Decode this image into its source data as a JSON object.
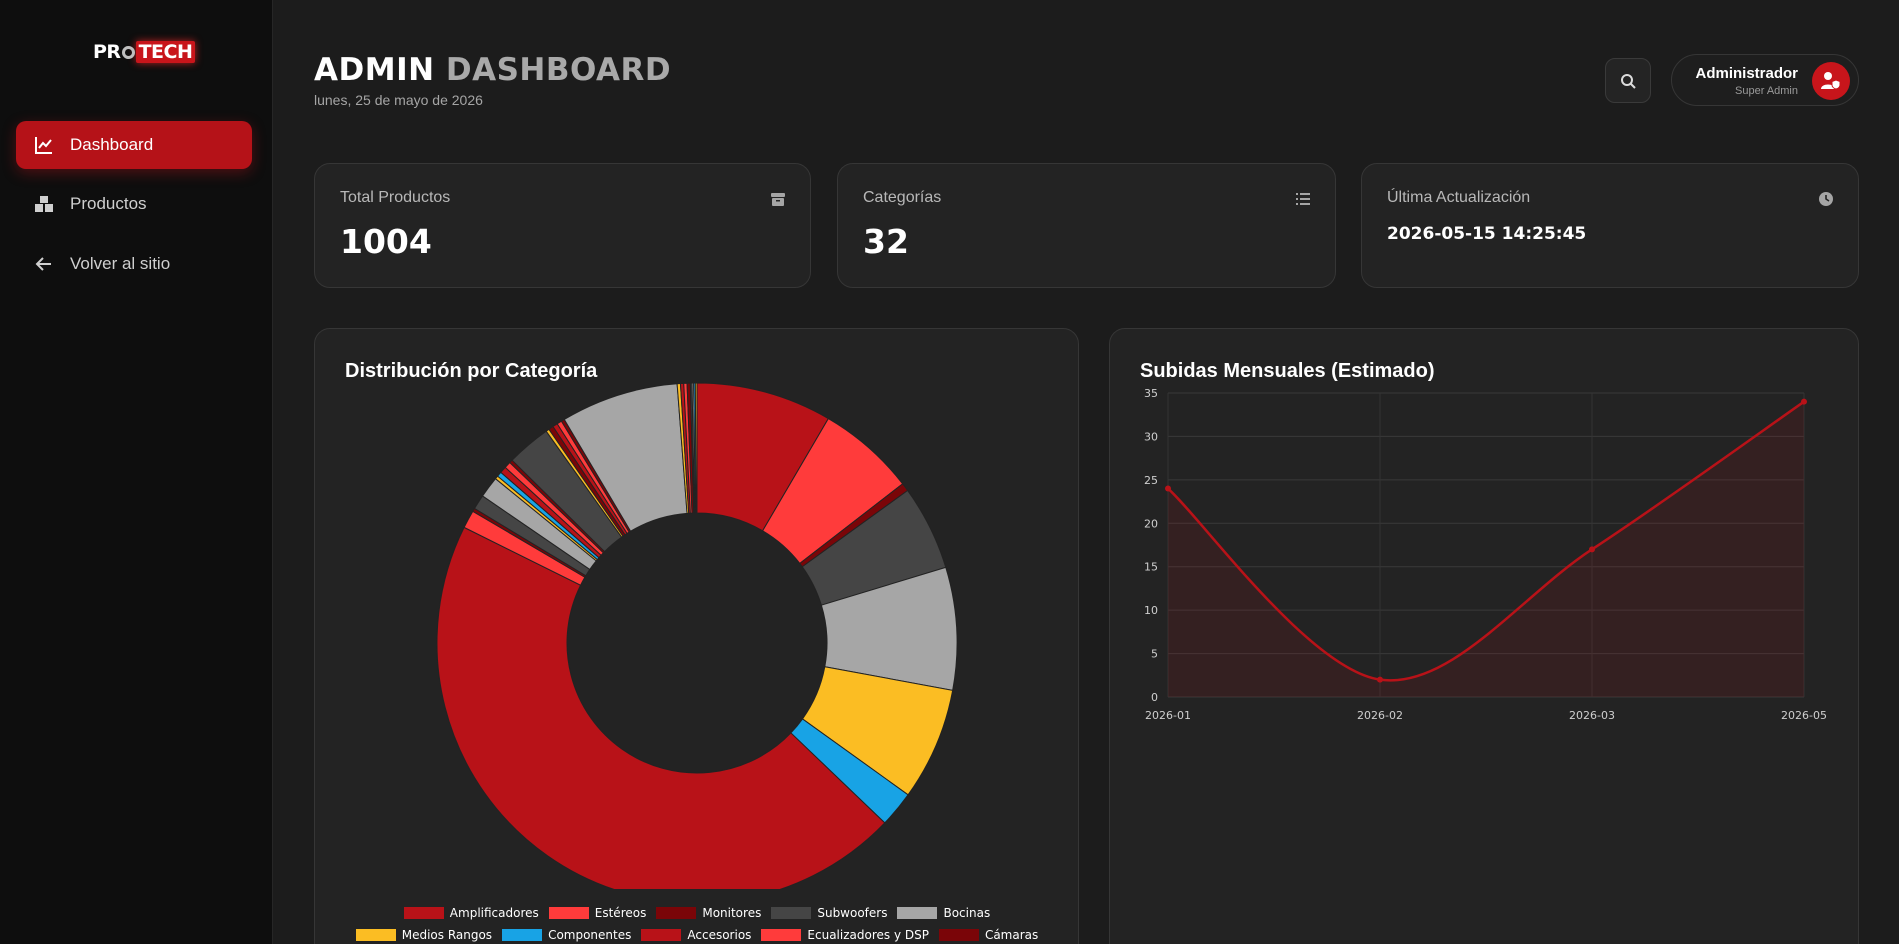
{
  "sidebar": {
    "logo": {
      "part1": "PR",
      "part2": "TECH"
    },
    "items": [
      {
        "label": "Dashboard",
        "icon": "chart-line-icon",
        "active": true
      },
      {
        "label": "Productos",
        "icon": "boxes-icon",
        "active": false
      },
      {
        "label": "Volver al sitio",
        "icon": "arrow-left-icon",
        "active": false
      }
    ]
  },
  "header": {
    "title_part1": "ADMIN",
    "title_part2": "DASHBOARD",
    "date": "lunes, 25 de mayo de 2026",
    "search_icon": "search-icon",
    "user": {
      "name": "Administrador",
      "role": "Super Admin",
      "icon": "user-shield-icon"
    }
  },
  "stats": [
    {
      "label": "Total Productos",
      "value": "1004",
      "icon": "box-icon"
    },
    {
      "label": "Categorías",
      "value": "32",
      "icon": "list-icon"
    },
    {
      "label": "Última Actualización",
      "value": "2026-05-15 14:25:45",
      "icon": "clock-icon"
    }
  ],
  "colors": {
    "accent": "#b51218",
    "red": "#b81218",
    "light_red": "#ff3b3b",
    "dark_red": "#7a0508",
    "dark_gray": "#454545",
    "light_gray": "#a6a6a6",
    "yellow": "#fbbd23",
    "blue": "#18a3e5"
  },
  "chart_data": [
    {
      "type": "pie",
      "title": "Distribución por Categoría",
      "legend_position": "bottom",
      "legend": [
        {
          "label": "Amplificadores",
          "color": "#b81218"
        },
        {
          "label": "Estéreos",
          "color": "#ff3b3b"
        },
        {
          "label": "Monitores",
          "color": "#7a0508"
        },
        {
          "label": "Subwoofers",
          "color": "#454545"
        },
        {
          "label": "Bocinas",
          "color": "#a6a6a6"
        },
        {
          "label": "Medios Rangos",
          "color": "#fbbd23"
        },
        {
          "label": "Componentes",
          "color": "#18a3e5"
        },
        {
          "label": "Accesorios",
          "color": "#b81218"
        },
        {
          "label": "Ecualizadores y DSP",
          "color": "#ff3b3b"
        },
        {
          "label": "Cámaras",
          "color": "#7a0508"
        }
      ],
      "slices": [
        {
          "value": 83,
          "color": "#b81218"
        },
        {
          "value": 60,
          "color": "#ff3b3b"
        },
        {
          "value": 5,
          "color": "#7a0508"
        },
        {
          "value": 52,
          "color": "#454545"
        },
        {
          "value": 75,
          "color": "#a6a6a6"
        },
        {
          "value": 69,
          "color": "#fbbd23"
        },
        {
          "value": 22,
          "color": "#18a3e5"
        },
        {
          "value": 445,
          "color": "#b81218"
        },
        {
          "value": 11,
          "color": "#ff3b3b"
        },
        {
          "value": 2,
          "color": "#7a0508"
        },
        {
          "value": 9,
          "color": "#454545"
        },
        {
          "value": 13,
          "color": "#a6a6a6"
        },
        {
          "value": 2,
          "color": "#fbbd23"
        },
        {
          "value": 3,
          "color": "#18a3e5"
        },
        {
          "value": 4,
          "color": "#b81218"
        },
        {
          "value": 4,
          "color": "#ff3b3b"
        },
        {
          "value": 2,
          "color": "#7a0508"
        },
        {
          "value": 27,
          "color": "#454545"
        },
        {
          "value": 2,
          "color": "#fbbd23"
        },
        {
          "value": 3,
          "color": "#7a0508"
        },
        {
          "value": 3,
          "color": "#b81218"
        },
        {
          "value": 3,
          "color": "#ff3b3b"
        },
        {
          "value": 2,
          "color": "#7a0508"
        },
        {
          "value": 72,
          "color": "#a6a6a6"
        },
        {
          "value": 2,
          "color": "#fbbd23"
        },
        {
          "value": 2,
          "color": "#b81218"
        },
        {
          "value": 2,
          "color": "#ff3b3b"
        },
        {
          "value": 2,
          "color": "#7a0508"
        },
        {
          "value": 1,
          "color": "#454545"
        },
        {
          "value": 1,
          "color": "#a6a6a6"
        },
        {
          "value": 1,
          "color": "#18a3e5"
        },
        {
          "value": 1,
          "color": "#fbbd23"
        }
      ]
    },
    {
      "type": "area",
      "title": "Subidas Mensuales (Estimado)",
      "categories": [
        "2026-01",
        "2026-02",
        "2026-03",
        "2026-05"
      ],
      "values": [
        24,
        2,
        17,
        34
      ],
      "ylim": [
        0,
        35
      ],
      "yticks": [
        "35",
        "30",
        "25",
        "20",
        "15",
        "10",
        "5",
        "0"
      ],
      "grid": true,
      "color": "#b81218"
    }
  ]
}
